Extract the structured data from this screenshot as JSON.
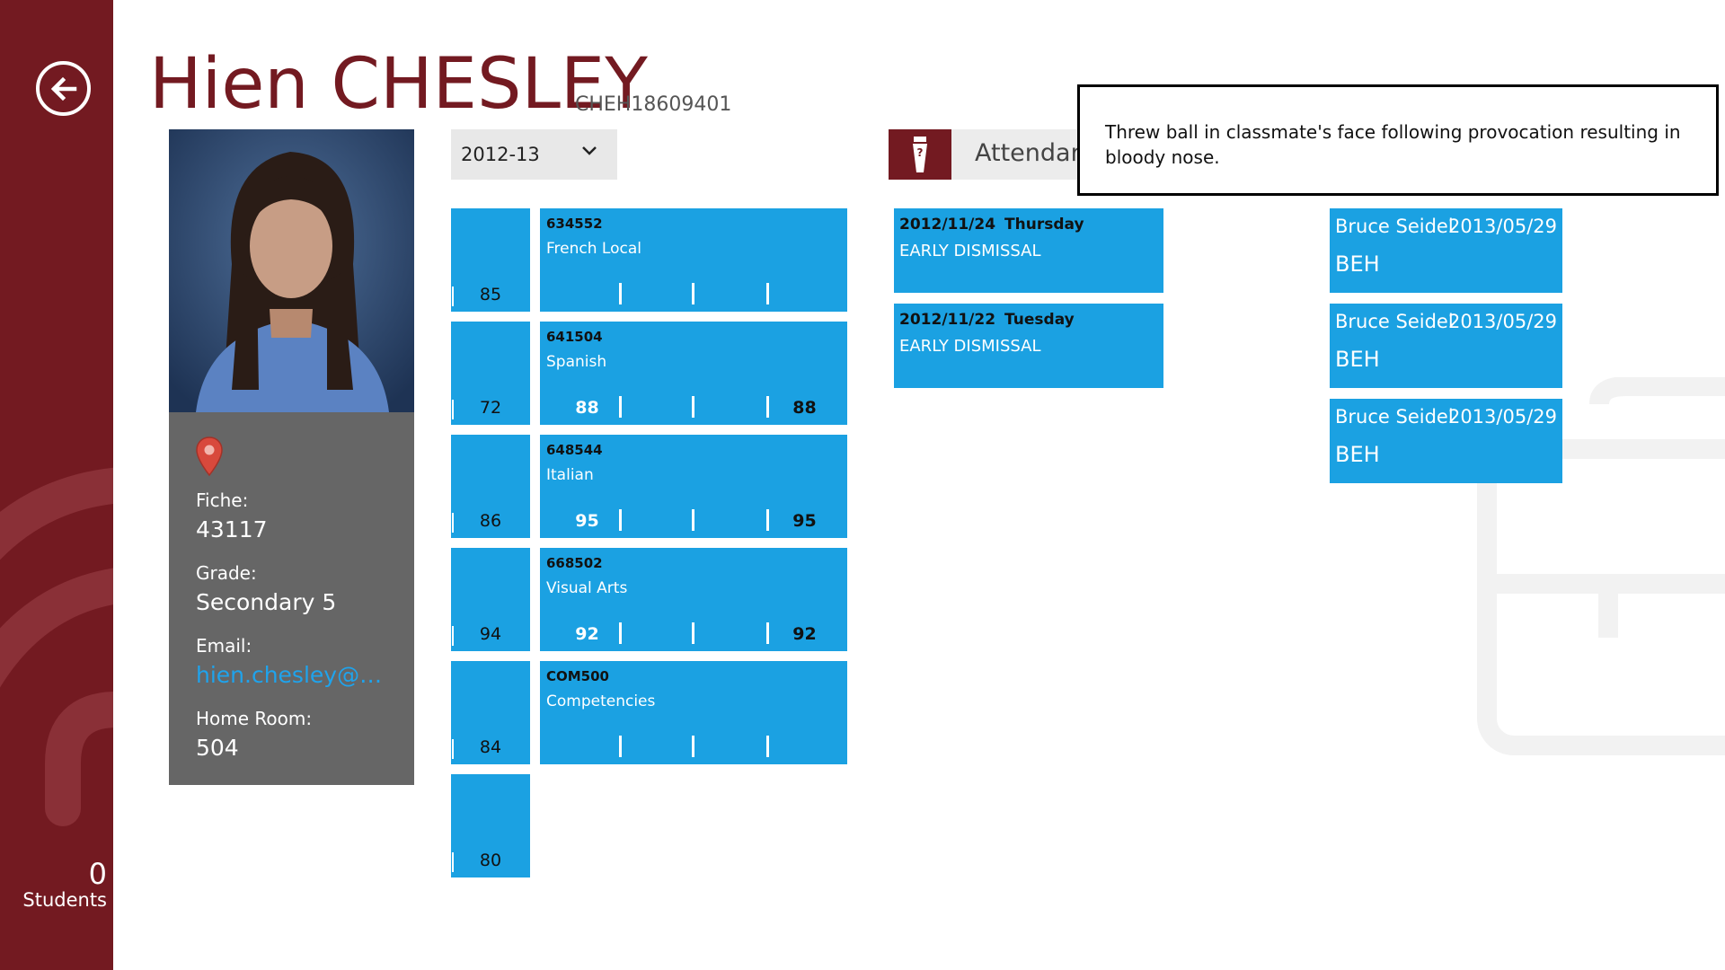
{
  "student": {
    "name": "Hien CHESLEY",
    "id": "CHEH18609401",
    "fiche_label": "Fiche:",
    "fiche": "43117",
    "grade_label": "Grade:",
    "grade": "Secondary 5",
    "email_label": "Email:",
    "email": "hien.chesley@ema...",
    "homeroom_label": "Home Room:",
    "homeroom": "504"
  },
  "sidebar": {
    "count": "0",
    "count_label": "Students"
  },
  "year_selector": {
    "value": "2012-13"
  },
  "averages": [
    "85",
    "72",
    "86",
    "94",
    "84",
    "80"
  ],
  "courses": [
    {
      "code": "634552",
      "name": "French Local",
      "grade1": "",
      "grade4": ""
    },
    {
      "code": "641504",
      "name": "Spanish",
      "grade1": "88",
      "grade4": "88"
    },
    {
      "code": "648544",
      "name": "Italian",
      "grade1": "95",
      "grade4": "95"
    },
    {
      "code": "668502",
      "name": "Visual Arts",
      "grade1": "92",
      "grade4": "92"
    },
    {
      "code": "COM500",
      "name": "Competencies",
      "grade1": "",
      "grade4": ""
    }
  ],
  "attendance": {
    "label": "Attendance",
    "items": [
      {
        "date": "2012/11/24",
        "day": "Thursday",
        "reason": "EARLY DISMISSAL"
      },
      {
        "date": "2012/11/22",
        "day": "Tuesday",
        "reason": "EARLY DISMISSAL"
      }
    ]
  },
  "behaviour": [
    {
      "teacher": "Bruce Seidel",
      "date": "2013/05/29",
      "category": "BEH"
    },
    {
      "teacher": "Bruce Seidel",
      "date": "2013/05/29",
      "category": "BEH"
    },
    {
      "teacher": "Bruce Seidel",
      "date": "2013/05/29",
      "category": "BEH"
    }
  ],
  "tooltip": {
    "text": "Threw ball in classmate's face following provocation resulting in bloody nose."
  },
  "colors": {
    "brand": "#731a21",
    "tile": "#1ba1e2",
    "info_panel": "#666666"
  }
}
